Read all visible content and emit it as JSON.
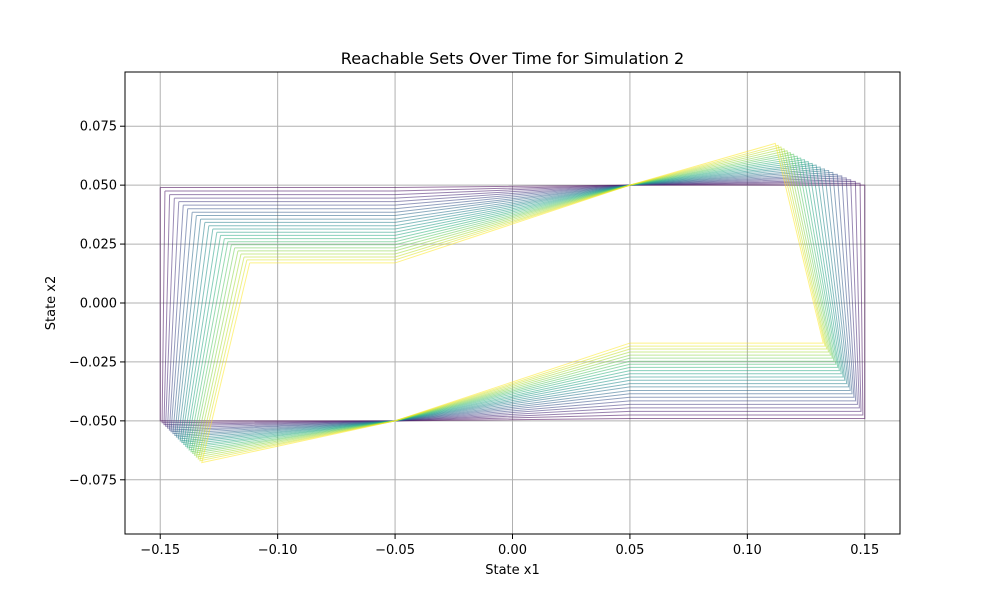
{
  "chart_data": {
    "type": "line",
    "title": "Reachable Sets Over Time for Simulation 2",
    "xlabel": "State x1",
    "ylabel": "State x2",
    "xlim": [
      -0.165,
      0.165
    ],
    "ylim": [
      -0.098,
      0.098
    ],
    "xticks": [
      -0.15,
      -0.1,
      -0.05,
      0.0,
      0.05,
      0.1,
      0.15
    ],
    "xtick_labels": [
      "−0.15",
      "−0.10",
      "−0.05",
      "0.00",
      "0.05",
      "0.10",
      "0.15"
    ],
    "yticks": [
      -0.075,
      -0.05,
      -0.025,
      0.0,
      0.025,
      0.05,
      0.075
    ],
    "ytick_labels": [
      "−0.075",
      "−0.050",
      "−0.025",
      "0.000",
      "0.025",
      "0.050",
      "0.075"
    ],
    "grid": true,
    "colormap": "viridis",
    "line_alpha": 0.55,
    "series_count": 24,
    "series": [
      {
        "x": [
          -0.15,
          -0.15,
          -0.05,
          0.05,
          0.15,
          0.15,
          0.05,
          -0.05,
          -0.15
        ],
        "y": [
          0.049,
          -0.05,
          -0.05,
          -0.049,
          -0.049,
          0.05,
          0.05,
          0.049,
          0.049
        ]
      },
      {
        "x": [
          -0.148,
          -0.1492,
          -0.05,
          0.05,
          0.1492,
          0.148,
          0.05,
          -0.05,
          -0.148
        ],
        "y": [
          0.0475,
          -0.0508,
          -0.05,
          -0.0475,
          -0.0475,
          0.0508,
          0.05,
          0.0475,
          0.0475
        ]
      },
      {
        "x": [
          -0.146,
          -0.1484,
          -0.05,
          0.05,
          0.1484,
          0.146,
          0.05,
          -0.05,
          -0.146
        ],
        "y": [
          0.046,
          -0.0516,
          -0.05,
          -0.046,
          -0.046,
          0.0516,
          0.05,
          0.046,
          0.046
        ]
      },
      {
        "x": [
          -0.144,
          -0.1477,
          -0.05,
          0.05,
          0.1477,
          0.144,
          0.05,
          -0.05,
          -0.144
        ],
        "y": [
          0.0445,
          -0.0523,
          -0.05,
          -0.0445,
          -0.0445,
          0.0523,
          0.05,
          0.0445,
          0.0445
        ]
      },
      {
        "x": [
          -0.1421,
          -0.1469,
          -0.05,
          0.05,
          0.1469,
          0.1421,
          0.05,
          -0.05,
          -0.1421
        ],
        "y": [
          0.043,
          -0.0531,
          -0.05,
          -0.043,
          -0.043,
          0.0531,
          0.05,
          0.043,
          0.043
        ]
      },
      {
        "x": [
          -0.1402,
          -0.1461,
          -0.05,
          0.05,
          0.1461,
          0.1402,
          0.05,
          -0.05,
          -0.1402
        ],
        "y": [
          0.0415,
          -0.0539,
          -0.05,
          -0.0415,
          -0.0415,
          0.0539,
          0.05,
          0.0415,
          0.0415
        ]
      },
      {
        "x": [
          -0.1383,
          -0.1454,
          -0.05,
          0.05,
          0.1454,
          0.1383,
          0.05,
          -0.05,
          -0.1383
        ],
        "y": [
          0.04,
          -0.0546,
          -0.05,
          -0.04,
          -0.04,
          0.0546,
          0.05,
          0.04,
          0.04
        ]
      },
      {
        "x": [
          -0.1364,
          -0.1446,
          -0.05,
          0.05,
          0.1446,
          0.1364,
          0.05,
          -0.05,
          -0.1364
        ],
        "y": [
          0.0385,
          -0.0554,
          -0.05,
          -0.0385,
          -0.0385,
          0.0554,
          0.05,
          0.0385,
          0.0385
        ]
      },
      {
        "x": [
          -0.1346,
          -0.1438,
          -0.05,
          0.05,
          0.1438,
          0.1346,
          0.05,
          -0.05,
          -0.1346
        ],
        "y": [
          0.0371,
          -0.0562,
          -0.05,
          -0.0371,
          -0.0371,
          0.0562,
          0.05,
          0.0371,
          0.0371
        ]
      },
      {
        "x": [
          -0.1328,
          -0.1431,
          -0.05,
          0.05,
          0.1431,
          0.1328,
          0.05,
          -0.05,
          -0.1328
        ],
        "y": [
          0.0356,
          -0.0569,
          -0.05,
          -0.0356,
          -0.0356,
          0.0569,
          0.05,
          0.0356,
          0.0356
        ]
      },
      {
        "x": [
          -0.131,
          -0.1423,
          -0.05,
          0.05,
          0.1423,
          0.131,
          0.05,
          -0.05,
          -0.131
        ],
        "y": [
          0.0342,
          -0.0577,
          -0.05,
          -0.0342,
          -0.0342,
          0.0577,
          0.05,
          0.0342,
          0.0342
        ]
      },
      {
        "x": [
          -0.1293,
          -0.1415,
          -0.05,
          0.05,
          0.1415,
          0.1293,
          0.05,
          -0.05,
          -0.1293
        ],
        "y": [
          0.0328,
          -0.0585,
          -0.05,
          -0.0328,
          -0.0328,
          0.0585,
          0.05,
          0.0328,
          0.0328
        ]
      },
      {
        "x": [
          -0.1276,
          -0.1408,
          -0.05,
          0.05,
          0.1408,
          0.1276,
          0.05,
          -0.05,
          -0.1276
        ],
        "y": [
          0.0314,
          -0.0592,
          -0.05,
          -0.0314,
          -0.0314,
          0.0592,
          0.05,
          0.0314,
          0.0314
        ]
      },
      {
        "x": [
          -0.1259,
          -0.14,
          -0.05,
          0.05,
          0.14,
          0.1259,
          0.05,
          -0.05,
          -0.1259
        ],
        "y": [
          0.03,
          -0.06,
          -0.05,
          -0.03,
          -0.03,
          0.06,
          0.05,
          0.03,
          0.03
        ]
      },
      {
        "x": [
          -0.1243,
          -0.1392,
          -0.05,
          0.05,
          0.1392,
          0.1243,
          0.05,
          -0.05,
          -0.1243
        ],
        "y": [
          0.0287,
          -0.0608,
          -0.05,
          -0.0287,
          -0.0287,
          0.0608,
          0.05,
          0.0287,
          0.0287
        ]
      },
      {
        "x": [
          -0.1227,
          -0.1385,
          -0.05,
          0.05,
          0.1385,
          0.1227,
          0.05,
          -0.05,
          -0.1227
        ],
        "y": [
          0.0273,
          -0.0615,
          -0.05,
          -0.0273,
          -0.0273,
          0.0615,
          0.05,
          0.0273,
          0.0273
        ]
      },
      {
        "x": [
          -0.1212,
          -0.1377,
          -0.05,
          0.05,
          0.1377,
          0.1212,
          0.05,
          -0.05,
          -0.1212
        ],
        "y": [
          0.026,
          -0.0623,
          -0.05,
          -0.026,
          -0.026,
          0.0623,
          0.05,
          0.026,
          0.026
        ]
      },
      {
        "x": [
          -0.1197,
          -0.1369,
          -0.05,
          0.05,
          0.1369,
          0.1197,
          0.05,
          -0.05,
          -0.1197
        ],
        "y": [
          0.0247,
          -0.0631,
          -0.05,
          -0.0247,
          -0.0247,
          0.0631,
          0.05,
          0.0247,
          0.0247
        ]
      },
      {
        "x": [
          -0.1183,
          -0.1362,
          -0.05,
          0.05,
          0.1362,
          0.1183,
          0.05,
          -0.05,
          -0.1183
        ],
        "y": [
          0.0234,
          -0.0638,
          -0.05,
          -0.0234,
          -0.0234,
          0.0638,
          0.05,
          0.0234,
          0.0234
        ]
      },
      {
        "x": [
          -0.1169,
          -0.1354,
          -0.05,
          0.05,
          0.1354,
          0.1169,
          0.05,
          -0.05,
          -0.1169
        ],
        "y": [
          0.0221,
          -0.0646,
          -0.05,
          -0.0221,
          -0.0221,
          0.0646,
          0.05,
          0.0221,
          0.0221
        ]
      },
      {
        "x": [
          -0.1156,
          -0.1346,
          -0.05,
          0.05,
          0.1346,
          0.1156,
          0.05,
          -0.05,
          -0.1156
        ],
        "y": [
          0.0208,
          -0.0654,
          -0.05,
          -0.0208,
          -0.0208,
          0.0654,
          0.05,
          0.0208,
          0.0208
        ]
      },
      {
        "x": [
          -0.1143,
          -0.1338,
          -0.05,
          0.05,
          0.1338,
          0.1143,
          0.05,
          -0.05,
          -0.1143
        ],
        "y": [
          0.0195,
          -0.0662,
          -0.05,
          -0.0195,
          -0.0195,
          0.0662,
          0.05,
          0.0195,
          0.0195
        ]
      },
      {
        "x": [
          -0.1131,
          -0.1331,
          -0.05,
          0.05,
          0.1331,
          0.1131,
          0.05,
          -0.05,
          -0.1131
        ],
        "y": [
          0.0183,
          -0.0669,
          -0.05,
          -0.0183,
          -0.0183,
          0.0669,
          0.05,
          0.0183,
          0.0183
        ]
      },
      {
        "x": [
          -0.1119,
          -0.1323,
          -0.05,
          0.05,
          0.1323,
          0.1119,
          0.05,
          -0.05,
          -0.1119
        ],
        "y": [
          0.017,
          -0.0677,
          -0.05,
          -0.017,
          -0.017,
          0.0677,
          0.05,
          0.017,
          0.017
        ]
      }
    ]
  }
}
